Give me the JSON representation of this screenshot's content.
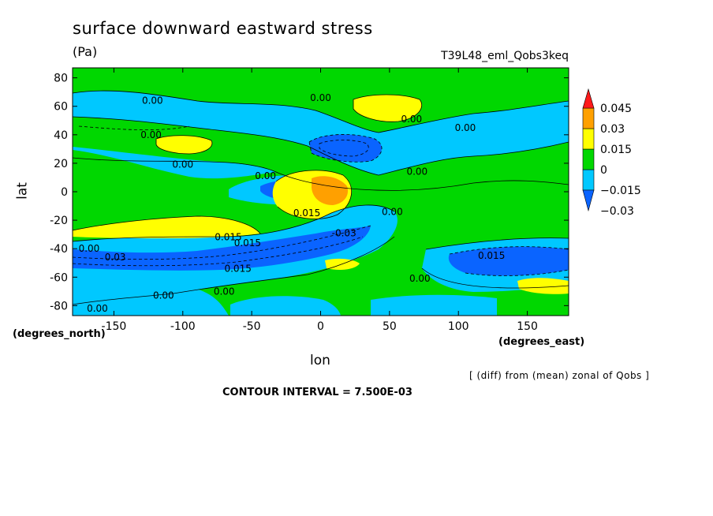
{
  "chart_data": {
    "type": "heatmap",
    "title": "surface downward eastward stress",
    "units": "(Pa)",
    "run_label": "T39L48_eml_Qobs3keq",
    "xlabel": "lon",
    "ylabel": "lat",
    "x_units": "(degrees_east)",
    "y_units": "(degrees_north)",
    "xlim": [
      -180,
      180
    ],
    "ylim": [
      -87,
      87
    ],
    "x_ticks": [
      -150,
      -100,
      -50,
      0,
      50,
      100,
      150
    ],
    "y_ticks": [
      -80,
      -60,
      -40,
      -20,
      0,
      20,
      40,
      60,
      80
    ],
    "x_tick_labels": [
      "-150",
      "-100",
      "-50",
      "0",
      "50",
      "100",
      "150"
    ],
    "y_tick_labels": [
      "-80",
      "-60",
      "-40",
      "-20",
      "0",
      "20",
      "40",
      "60",
      "80"
    ],
    "note": "[ (diff) from (mean) zonal of Qobs ]",
    "contour_interval": "CONTOUR INTERVAL = 7.500E-03",
    "colorbar": {
      "labels": [
        "0.045",
        "0.03",
        "0.015",
        "0",
        "−0.015",
        "−0.03"
      ],
      "colors": [
        "#0a64ff",
        "#00c8ff",
        "#00d700",
        "#ffff00",
        "#ffa000",
        "#ff1a1a"
      ]
    },
    "contour_labels": [
      {
        "text": "0.00",
        "lon": -122,
        "lat": 64
      },
      {
        "text": "0.00",
        "lon": 0,
        "lat": 66
      },
      {
        "text": "0.00",
        "lon": 66,
        "lat": 51
      },
      {
        "text": "0.00",
        "lon": 105,
        "lat": 45
      },
      {
        "text": "0.00",
        "lon": -123,
        "lat": 40
      },
      {
        "text": "0.00",
        "lon": -100,
        "lat": 19
      },
      {
        "text": "0.00",
        "lon": -40,
        "lat": 11
      },
      {
        "text": "0.00",
        "lon": 70,
        "lat": 14
      },
      {
        "text": "0.015",
        "lon": -10,
        "lat": -15
      },
      {
        "text": "0.00",
        "lon": 52,
        "lat": -14
      },
      {
        "text": "0.015",
        "lon": -67,
        "lat": -32
      },
      {
        "text": "0.015",
        "lon": -53,
        "lat": -36
      },
      {
        "text": "-0.03",
        "lon": 17,
        "lat": -29
      },
      {
        "text": "0.00",
        "lon": -168,
        "lat": -40
      },
      {
        "text": "0.03",
        "lon": -149,
        "lat": -46
      },
      {
        "text": "0.015",
        "lon": 124,
        "lat": -45
      },
      {
        "text": "0.015",
        "lon": -60,
        "lat": -54
      },
      {
        "text": "0.00",
        "lon": 72,
        "lat": -61
      },
      {
        "text": "0.00",
        "lon": -114,
        "lat": -73
      },
      {
        "text": "0.00",
        "lon": -70,
        "lat": -70
      },
      {
        "text": "0.00",
        "lon": -162,
        "lat": -82
      }
    ]
  }
}
